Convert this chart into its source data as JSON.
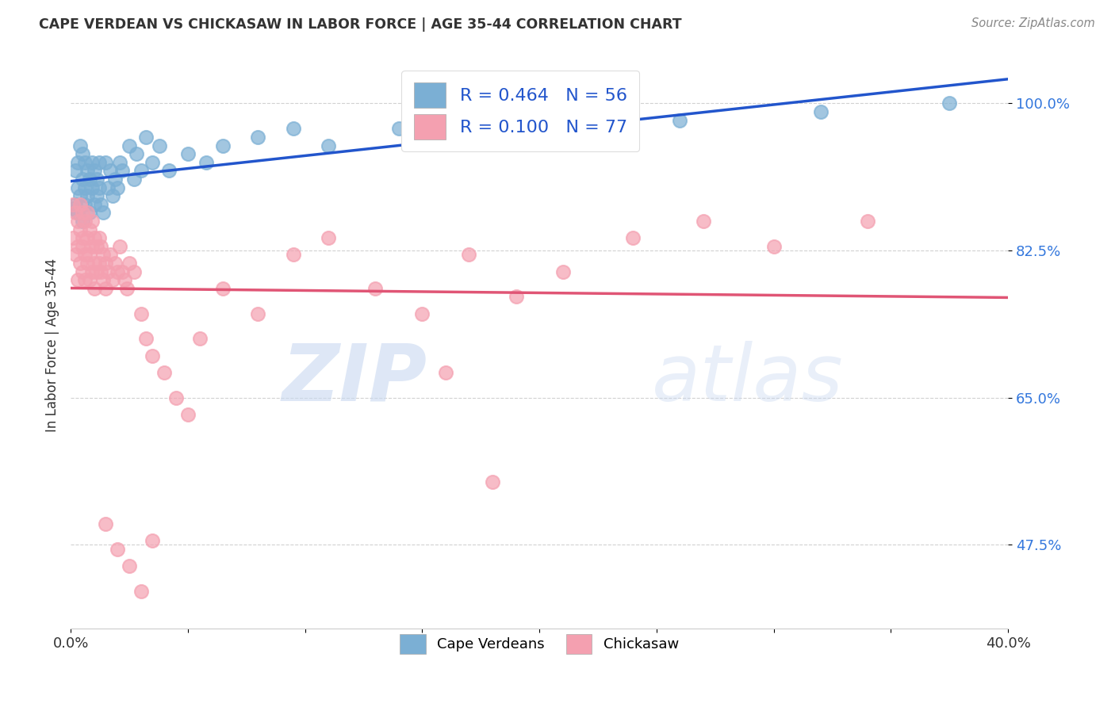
{
  "title": "CAPE VERDEAN VS CHICKASAW IN LABOR FORCE | AGE 35-44 CORRELATION CHART",
  "source": "Source: ZipAtlas.com",
  "ylabel": "In Labor Force | Age 35-44",
  "xlim": [
    0.0,
    0.4
  ],
  "ylim": [
    0.375,
    1.05
  ],
  "x_tick_positions": [
    0.0,
    0.05,
    0.1,
    0.15,
    0.2,
    0.25,
    0.3,
    0.35,
    0.4
  ],
  "x_tick_labels": [
    "0.0%",
    "",
    "",
    "",
    "",
    "",
    "",
    "",
    "40.0%"
  ],
  "y_tick_positions": [
    0.475,
    0.65,
    0.825,
    1.0
  ],
  "y_tick_labels": [
    "47.5%",
    "65.0%",
    "82.5%",
    "100.0%"
  ],
  "cape_verdean_color": "#7bafd4",
  "chickasaw_color": "#f4a0b0",
  "trend_blue": "#2255cc",
  "trend_pink": "#e05575",
  "R_blue": 0.464,
  "N_blue": 56,
  "R_pink": 0.1,
  "N_pink": 77,
  "legend_label_blue": "Cape Verdeans",
  "legend_label_pink": "Chickasaw",
  "watermark_zip": "ZIP",
  "watermark_atlas": "atlas",
  "cape_verdean_x": [
    0.001,
    0.002,
    0.002,
    0.003,
    0.003,
    0.003,
    0.004,
    0.004,
    0.005,
    0.005,
    0.005,
    0.006,
    0.006,
    0.006,
    0.007,
    0.007,
    0.008,
    0.008,
    0.009,
    0.009,
    0.01,
    0.01,
    0.011,
    0.011,
    0.012,
    0.012,
    0.013,
    0.014,
    0.015,
    0.016,
    0.017,
    0.018,
    0.019,
    0.02,
    0.021,
    0.022,
    0.025,
    0.027,
    0.028,
    0.03,
    0.032,
    0.035,
    0.038,
    0.042,
    0.05,
    0.058,
    0.065,
    0.08,
    0.095,
    0.11,
    0.14,
    0.17,
    0.21,
    0.26,
    0.32,
    0.375
  ],
  "cape_verdean_y": [
    0.875,
    0.92,
    0.88,
    0.93,
    0.9,
    0.87,
    0.95,
    0.89,
    0.94,
    0.91,
    0.86,
    0.93,
    0.9,
    0.88,
    0.92,
    0.89,
    0.91,
    0.87,
    0.93,
    0.9,
    0.88,
    0.92,
    0.91,
    0.89,
    0.93,
    0.9,
    0.88,
    0.87,
    0.93,
    0.9,
    0.92,
    0.89,
    0.91,
    0.9,
    0.93,
    0.92,
    0.95,
    0.91,
    0.94,
    0.92,
    0.96,
    0.93,
    0.95,
    0.92,
    0.94,
    0.93,
    0.95,
    0.96,
    0.97,
    0.95,
    0.97,
    0.96,
    0.97,
    0.98,
    0.99,
    1.0
  ],
  "chickasaw_x": [
    0.001,
    0.001,
    0.002,
    0.002,
    0.003,
    0.003,
    0.003,
    0.004,
    0.004,
    0.004,
    0.005,
    0.005,
    0.005,
    0.005,
    0.006,
    0.006,
    0.006,
    0.007,
    0.007,
    0.007,
    0.008,
    0.008,
    0.008,
    0.009,
    0.009,
    0.009,
    0.01,
    0.01,
    0.01,
    0.011,
    0.011,
    0.012,
    0.012,
    0.013,
    0.013,
    0.014,
    0.014,
    0.015,
    0.015,
    0.016,
    0.017,
    0.018,
    0.019,
    0.02,
    0.021,
    0.022,
    0.023,
    0.024,
    0.025,
    0.027,
    0.03,
    0.032,
    0.035,
    0.04,
    0.045,
    0.05,
    0.055,
    0.065,
    0.08,
    0.095,
    0.11,
    0.13,
    0.15,
    0.17,
    0.19,
    0.21,
    0.24,
    0.27,
    0.3,
    0.34,
    0.015,
    0.02,
    0.025,
    0.03,
    0.035,
    0.16,
    0.18
  ],
  "chickasaw_y": [
    0.88,
    0.84,
    0.87,
    0.82,
    0.86,
    0.83,
    0.79,
    0.85,
    0.81,
    0.88,
    0.84,
    0.8,
    0.87,
    0.83,
    0.86,
    0.82,
    0.79,
    0.84,
    0.81,
    0.87,
    0.85,
    0.82,
    0.79,
    0.83,
    0.8,
    0.86,
    0.84,
    0.81,
    0.78,
    0.83,
    0.8,
    0.84,
    0.81,
    0.8,
    0.83,
    0.82,
    0.79,
    0.81,
    0.78,
    0.8,
    0.82,
    0.79,
    0.81,
    0.8,
    0.83,
    0.8,
    0.79,
    0.78,
    0.81,
    0.8,
    0.75,
    0.72,
    0.7,
    0.68,
    0.65,
    0.63,
    0.72,
    0.78,
    0.75,
    0.82,
    0.84,
    0.78,
    0.75,
    0.82,
    0.77,
    0.8,
    0.84,
    0.86,
    0.83,
    0.86,
    0.5,
    0.47,
    0.45,
    0.42,
    0.48,
    0.68,
    0.55
  ]
}
